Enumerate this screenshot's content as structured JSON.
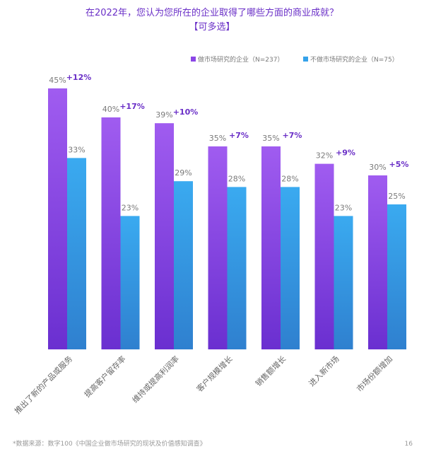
{
  "chart_data": {
    "type": "bar",
    "title": "在2022年，您认为您所在的企业取得了哪些方面的商业成就？",
    "subtitle": "【可多选】",
    "categories": [
      "推出了新的产品或服务",
      "提高客户留存率",
      "维持或提高利润率",
      "客户规模增长",
      "销售额增长",
      "进入新市场",
      "市场份额增加"
    ],
    "series": [
      {
        "name": "做市场研究的企业（N=237）",
        "values": [
          45,
          40,
          39,
          35,
          35,
          32,
          30
        ],
        "labels": [
          "45%",
          "40%",
          "39%",
          "35%",
          "35%",
          "32%",
          "30%"
        ]
      },
      {
        "name": "不做市场研究的企业（N=75）",
        "values": [
          33,
          23,
          29,
          28,
          28,
          23,
          25
        ],
        "labels": [
          "33%",
          "23%",
          "29%",
          "28%",
          "28%",
          "23%",
          "25%"
        ]
      }
    ],
    "differences": [
      "+12%",
      "+17%",
      "+10%",
      "+7%",
      "+7%",
      "+9%",
      "+5%"
    ],
    "ylim": [
      0,
      45
    ],
    "xlabel": "",
    "ylabel": "",
    "grid": false,
    "legend_position": "top-right",
    "colors": {
      "series1_top": "#a05cf0",
      "series1_bottom": "#6a2fd0",
      "series2_top": "#3aaaf0",
      "series2_bottom": "#2f80cf",
      "accent": "#6a2fc7"
    }
  },
  "footnote": "*数据来源：数字100《中国企业做市场研究的现状及价值感知调查》",
  "page_number": "16"
}
